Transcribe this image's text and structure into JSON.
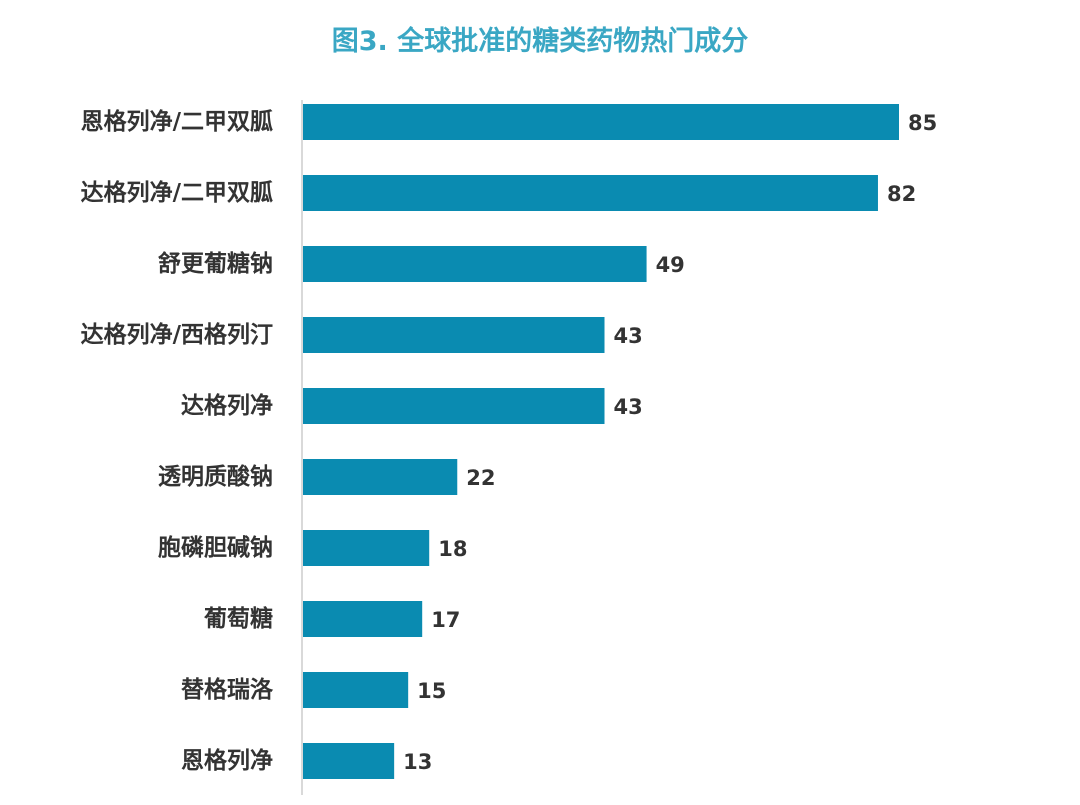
{
  "chart_data": {
    "type": "bar",
    "orientation": "horizontal",
    "title": "图3. 全球批准的糖类药物热门成分",
    "xlabel": "",
    "ylabel": "",
    "categories": [
      "恩格列净/二甲双胍",
      "达格列净/二甲双胍",
      "舒更葡糖钠",
      "达格列净/西格列汀",
      "达格列净",
      "透明质酸钠",
      "胞磷胆碱钠",
      "葡萄糖",
      "替格瑞洛",
      "恩格列净"
    ],
    "values": [
      85,
      82,
      49,
      43,
      43,
      22,
      18,
      17,
      15,
      13
    ],
    "xlim": [
      0,
      85
    ],
    "grid": false,
    "legend": "none",
    "data_labels": true
  },
  "colors": {
    "bar": "#0a8bb1",
    "title": "#3aa7c4",
    "axis": "#d9d9d9",
    "text": "#333333"
  }
}
